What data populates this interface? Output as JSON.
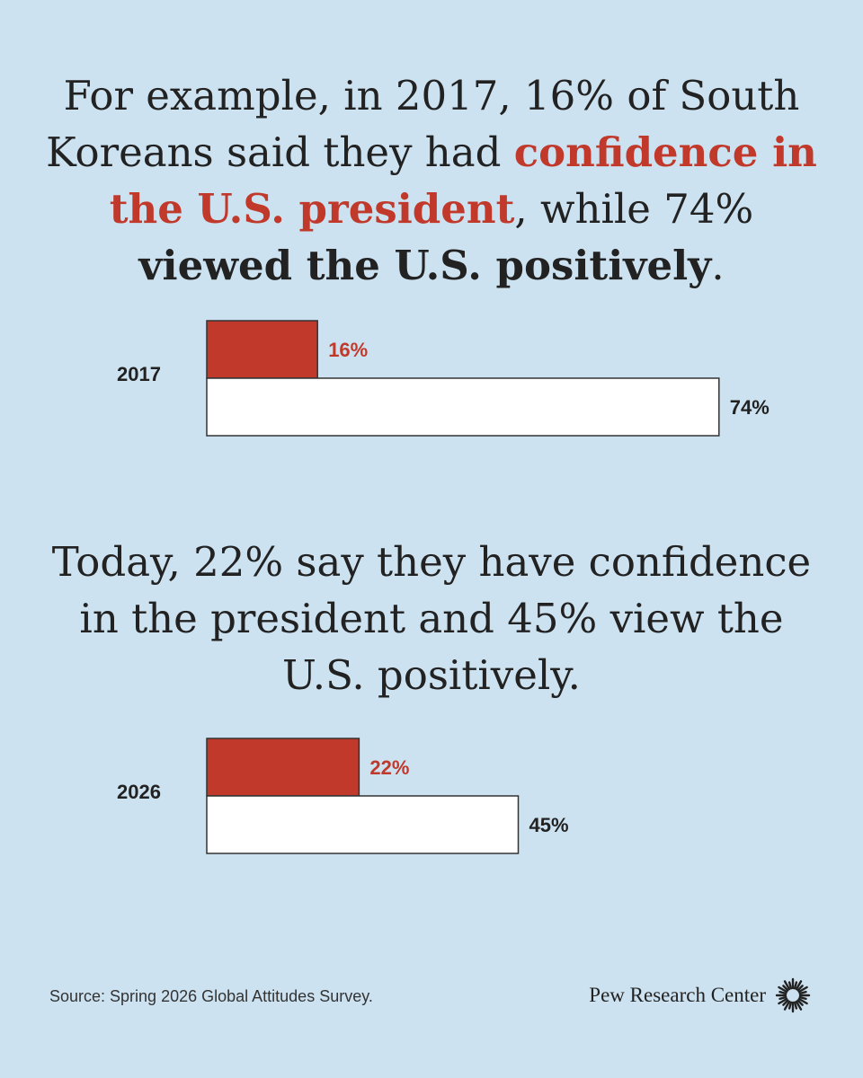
{
  "headline1": {
    "part1": "For example, in 2017, 16% of South Koreans said they had ",
    "highlight_red": "confidence in the U.S. president",
    "part2": ", while 74% ",
    "highlight_bold": "viewed the U.S. positively",
    "part3": "."
  },
  "headline2": {
    "text": "Today, 22% say they have confidence in the president and 45% view the U.S. positively."
  },
  "colors": {
    "background": "#cde2f0",
    "confidence_bar": "#c0392b",
    "favorable_bar": "#ffffff",
    "bar_outline": "#333333",
    "label_red": "#c0392b",
    "label_dark": "#222222"
  },
  "chart_data": [
    {
      "type": "bar",
      "orientation": "horizontal",
      "categories": [
        "2017"
      ],
      "series": [
        {
          "values": [
            16
          ],
          "value_labels": [
            "16%"
          ],
          "color": "#c0392b"
        },
        {
          "values": [
            74
          ],
          "value_labels": [
            "74%"
          ],
          "color": "#ffffff"
        }
      ],
      "xlim": [
        0,
        100
      ],
      "grid": false
    },
    {
      "type": "bar",
      "orientation": "horizontal",
      "categories": [
        "2026"
      ],
      "series": [
        {
          "values": [
            22
          ],
          "value_labels": [
            "22%"
          ],
          "color": "#c0392b"
        },
        {
          "values": [
            45
          ],
          "value_labels": [
            "45%"
          ],
          "color": "#ffffff"
        }
      ],
      "xlim": [
        0,
        100
      ],
      "grid": false
    }
  ],
  "footer": {
    "source": "Source: Spring 2026 Global Attitudes Survey.",
    "brand": "Pew Research Center",
    "brand_icon": "pew-sunburst-logo"
  }
}
